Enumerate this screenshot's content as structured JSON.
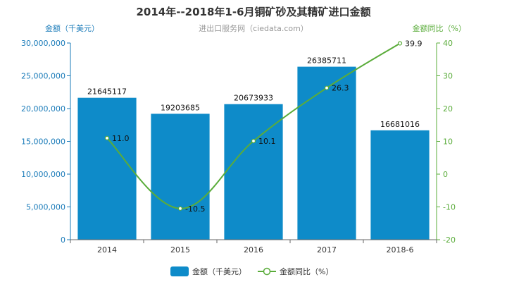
{
  "chart_data": {
    "type": "bar",
    "title": "2014年--2018年1-6月铜矿砂及其精矿进口金额",
    "subtitle": "进出口服务网（ciedata.com）",
    "categories": [
      "2014",
      "2015",
      "2016",
      "2017",
      "2018-6"
    ],
    "y_left_label": "金额（千美元）",
    "y_right_label": "金额同比（%）",
    "ylim_left": [
      0,
      30000000
    ],
    "ylim_right": [
      -20,
      40
    ],
    "y_left_ticks": [
      "0",
      "5,000,000",
      "10,000,000",
      "15,000,000",
      "20,000,000",
      "25,000,000",
      "30,000,000"
    ],
    "y_right_ticks": [
      "-20",
      "-10",
      "0",
      "10",
      "20",
      "30",
      "40"
    ],
    "series": [
      {
        "name": "金额（千美元）",
        "type": "bar",
        "values": [
          21645117,
          19203685,
          20673933,
          26385711,
          16681016
        ],
        "labels": [
          "21645117",
          "19203685",
          "20673933",
          "26385711",
          "16681016"
        ],
        "color": "#0e8bc9"
      },
      {
        "name": "金额同比（%）",
        "type": "line",
        "values": [
          11.0,
          -10.5,
          10.1,
          26.3,
          39.9
        ],
        "labels": [
          "11.0",
          "-10.5",
          "10.1",
          "26.3",
          "39.9"
        ],
        "color": "#5aac3a"
      }
    ],
    "legend_position": "bottom"
  }
}
